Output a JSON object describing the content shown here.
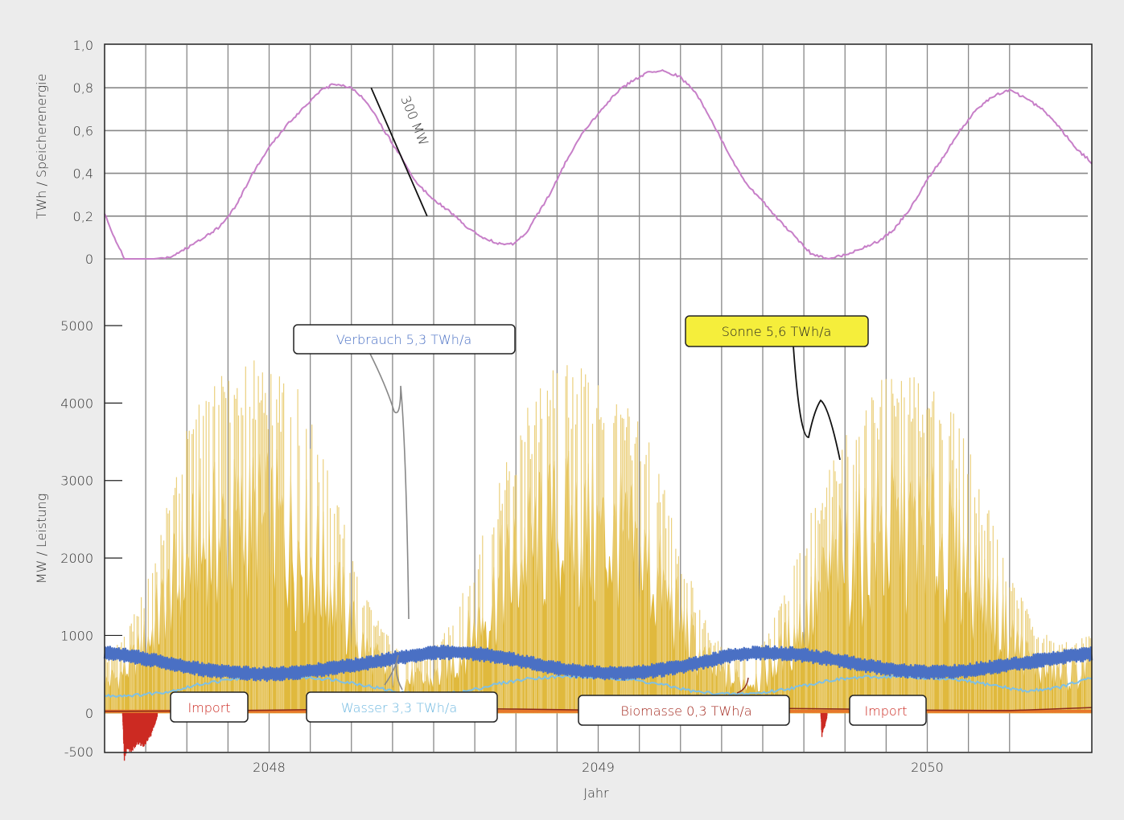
{
  "colors": {
    "background": "#ececec",
    "plot": "#ffffff",
    "grid": "#888888",
    "storage": "#c77fc8",
    "solar": "#e0b93d",
    "solar_peaks": "#ebd07d",
    "consumption": "#4a70c4",
    "water": "#7ec0e6",
    "biomass": "#8b2a1b",
    "biomass_fill": "#e7782b",
    "import": "#cc2a22",
    "callout_yellow": "#f5ee3b"
  },
  "chart_data": [
    {
      "type": "line",
      "ylabel": "TWh / Speicherenergie",
      "ylim": [
        0,
        1.0
      ],
      "yticks": [
        "1,0",
        "0,8",
        "0,6",
        "0,4",
        "0,2",
        "0"
      ],
      "ytick_values": [
        1.0,
        0.8,
        0.6,
        0.4,
        0.2,
        0
      ],
      "xlim": [
        2047.5,
        2050.5
      ],
      "series": [
        {
          "x": [
            2047.5,
            2047.53,
            2047.56,
            2047.6,
            2047.65,
            2047.7,
            2047.75,
            2047.8,
            2047.85,
            2047.9,
            2047.95,
            2048.0,
            2048.05,
            2048.1,
            2048.15,
            2048.2,
            2048.25,
            2048.3,
            2048.35,
            2048.4,
            2048.45,
            2048.5,
            2048.55,
            2048.6,
            2048.65,
            2048.7,
            2048.74,
            2048.78,
            2048.82,
            2048.86,
            2048.9,
            2048.95,
            2049.0,
            2049.05,
            2049.1,
            2049.15,
            2049.2,
            2049.25,
            2049.3,
            2049.35,
            2049.4,
            2049.45,
            2049.5,
            2049.55,
            2049.6,
            2049.65,
            2049.7,
            2049.75,
            2049.8,
            2049.85,
            2049.9,
            2049.95,
            2050.0,
            2050.05,
            2050.1,
            2050.15,
            2050.2,
            2050.25,
            2050.3,
            2050.35,
            2050.4,
            2050.45,
            2050.5
          ],
          "y": [
            0.21,
            0.1,
            0.0,
            0.0,
            0.0,
            0.01,
            0.05,
            0.1,
            0.15,
            0.25,
            0.4,
            0.52,
            0.62,
            0.7,
            0.78,
            0.82,
            0.8,
            0.73,
            0.6,
            0.48,
            0.35,
            0.28,
            0.22,
            0.15,
            0.1,
            0.07,
            0.07,
            0.12,
            0.22,
            0.32,
            0.45,
            0.58,
            0.68,
            0.77,
            0.83,
            0.87,
            0.88,
            0.85,
            0.77,
            0.63,
            0.48,
            0.35,
            0.27,
            0.18,
            0.1,
            0.02,
            0.0,
            0.02,
            0.05,
            0.08,
            0.14,
            0.24,
            0.37,
            0.48,
            0.6,
            0.7,
            0.76,
            0.79,
            0.75,
            0.7,
            0.62,
            0.52,
            0.45
          ]
        }
      ],
      "annotations": [
        {
          "text": "300 MW",
          "x1": 2048.31,
          "y1": 0.8,
          "x2": 2048.48,
          "y2": 0.2
        }
      ]
    },
    {
      "type": "area",
      "xlabel": "Jahr",
      "ylabel": "MW / Leistung",
      "ylim": [
        -500,
        5000
      ],
      "yticks": [
        "5000",
        "4000",
        "3000",
        "2000",
        "1000",
        "0",
        "-500"
      ],
      "ytick_values": [
        5000,
        4000,
        3000,
        2000,
        1000,
        0,
        -500
      ],
      "xlim": [
        2047.5,
        2050.5
      ],
      "xticks": [
        "2048",
        "2049",
        "2050"
      ],
      "xtick_values": [
        2048.0,
        2049.0,
        2050.0
      ],
      "series": [
        {
          "name": "Sonne 5,6 TWh/a",
          "x": [
            2047.5,
            2047.55,
            2047.6,
            2047.65,
            2047.7,
            2047.75,
            2047.8,
            2047.85,
            2047.9,
            2047.95,
            2048.0,
            2048.05,
            2048.1,
            2048.15,
            2048.2,
            2048.25,
            2048.3,
            2048.35,
            2048.4,
            2048.45,
            2048.5,
            2048.55,
            2048.6,
            2048.65,
            2048.7,
            2048.75,
            2048.8,
            2048.85,
            2048.9,
            2048.95,
            2049.0,
            2049.05,
            2049.1,
            2049.15,
            2049.2,
            2049.25,
            2049.3,
            2049.35,
            2049.4,
            2049.45,
            2049.5,
            2049.55,
            2049.6,
            2049.65,
            2049.7,
            2049.75,
            2049.8,
            2049.85,
            2049.9,
            2049.95,
            2050.0,
            2050.05,
            2050.1,
            2050.15,
            2050.2,
            2050.25,
            2050.3,
            2050.35,
            2050.4,
            2050.45,
            2050.5
          ],
          "y": [
            700,
            900,
            1300,
            2000,
            2800,
            3500,
            3900,
            4200,
            4300,
            4400,
            4300,
            4200,
            4000,
            3500,
            2800,
            2000,
            1400,
            1000,
            800,
            750,
            800,
            1100,
            1600,
            2300,
            3000,
            3500,
            3900,
            4200,
            4300,
            4300,
            4200,
            4000,
            3800,
            3400,
            2800,
            2100,
            1400,
            1000,
            800,
            750,
            900,
            1300,
            1900,
            2500,
            3100,
            3600,
            3900,
            4100,
            4200,
            4200,
            4100,
            3900,
            3600,
            3000,
            2400,
            1800,
            1300,
            1000,
            900,
            900,
            1000
          ]
        },
        {
          "name": "Verbrauch 5,3 TWh/a",
          "x": [
            2047.5,
            2047.6,
            2047.7,
            2047.8,
            2047.9,
            2048.0,
            2048.1,
            2048.2,
            2048.3,
            2048.4,
            2048.5,
            2048.6,
            2048.7,
            2048.8,
            2048.9,
            2049.0,
            2049.1,
            2049.2,
            2049.3,
            2049.4,
            2049.5,
            2049.6,
            2049.7,
            2049.8,
            2049.9,
            2050.0,
            2050.1,
            2050.2,
            2050.3,
            2050.4,
            2050.5
          ],
          "y": [
            780,
            720,
            640,
            560,
            520,
            500,
            530,
            580,
            640,
            720,
            780,
            780,
            720,
            640,
            560,
            520,
            510,
            560,
            640,
            740,
            780,
            760,
            700,
            620,
            560,
            520,
            540,
            590,
            650,
            720,
            760
          ]
        },
        {
          "name": "Wasser 3,3 TWh/a",
          "x": [
            2047.5,
            2047.6,
            2047.7,
            2047.8,
            2047.9,
            2048.0,
            2048.1,
            2048.2,
            2048.3,
            2048.4,
            2048.5,
            2048.6,
            2048.7,
            2048.8,
            2048.9,
            2049.0,
            2049.1,
            2049.2,
            2049.3,
            2049.4,
            2049.5,
            2049.6,
            2049.7,
            2049.8,
            2049.9,
            2050.0,
            2050.1,
            2050.2,
            2050.3,
            2050.4,
            2050.5
          ],
          "y": [
            220,
            230,
            280,
            380,
            440,
            470,
            460,
            430,
            350,
            260,
            230,
            280,
            380,
            450,
            470,
            460,
            430,
            360,
            270,
            240,
            260,
            330,
            420,
            460,
            470,
            450,
            420,
            360,
            280,
            330,
            450
          ]
        },
        {
          "name": "Biomasse 0,3 TWh/a",
          "x": [
            2047.5,
            2047.75,
            2048.0,
            2048.25,
            2048.5,
            2048.75,
            2049.0,
            2049.25,
            2049.5,
            2049.75,
            2050.0,
            2050.25,
            2050.5
          ],
          "y": [
            20,
            25,
            35,
            50,
            60,
            50,
            35,
            45,
            60,
            50,
            35,
            30,
            70
          ]
        },
        {
          "name": "Import",
          "x": [
            2047.555,
            2047.56,
            2047.57,
            2047.58,
            2047.6,
            2047.62,
            2047.64,
            2047.66,
            2049.677,
            2049.68,
            2049.685,
            2049.69,
            2049.695
          ],
          "y": [
            -50,
            -600,
            -450,
            -500,
            -400,
            -420,
            -300,
            -50,
            -50,
            -300,
            -200,
            -150,
            -50
          ]
        }
      ]
    }
  ],
  "callouts": {
    "verbrauch": "Verbrauch 5,3 TWh/a",
    "sonne": "Sonne 5,6 TWh/a",
    "import_left": "Import",
    "wasser": "Wasser 3,3 TWh/a",
    "biomasse": "Biomasse 0,3 TWh/a",
    "import_right": "Import"
  }
}
